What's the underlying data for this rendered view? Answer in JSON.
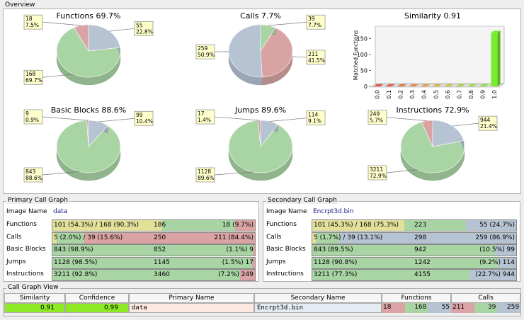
{
  "overview": {
    "title": "Overview"
  },
  "chart_data": [
    {
      "type": "pie",
      "title": "Functions 69.7%",
      "counts": [
        18,
        55,
        168
      ],
      "values": [
        7.5,
        22.8,
        69.7
      ],
      "value_labels": [
        "7.5%",
        "22.8%",
        "69.7%"
      ],
      "colors": [
        "#d9a3a3",
        "#b5c3d3",
        "#a9d4a4"
      ]
    },
    {
      "type": "pie",
      "title": "Calls 7.7%",
      "counts": [
        259,
        39,
        211
      ],
      "values": [
        50.9,
        7.7,
        41.5
      ],
      "value_labels": [
        "50.9%",
        "7.7%",
        "41.5%"
      ],
      "colors": [
        "#b5c3d3",
        "#a9d4a4",
        "#d9a3a3"
      ]
    },
    {
      "type": "bar",
      "title": "Similarity 0.91",
      "y_label": "Matched Functions",
      "categories": [
        "0.0",
        "0.1",
        "0.2",
        "0.3",
        "0.4",
        "0.5",
        "0.6",
        "0.7",
        "0.8",
        "0.9",
        "1.0"
      ],
      "values": [
        0,
        0,
        0,
        0,
        0,
        0,
        0,
        0,
        0,
        0,
        168
      ],
      "colors": [
        "#e0504a",
        "#e0604a",
        "#e07848",
        "#e08c48",
        "#e0a048",
        "#d8b448",
        "#c8c448",
        "#b4d048",
        "#a0dc48",
        "#8ce440",
        "#7aec30"
      ],
      "ylim": [
        0,
        180
      ],
      "yticks": [
        0,
        50,
        100,
        150
      ]
    },
    {
      "type": "pie",
      "title": "Basic Blocks 88.6%",
      "counts": [
        9,
        99,
        843
      ],
      "values": [
        0.9,
        10.4,
        88.6
      ],
      "value_labels": [
        "0.9%",
        "10.4%",
        "88.6%"
      ],
      "colors": [
        "#d9a3a3",
        "#b5c3d3",
        "#a9d4a4"
      ]
    },
    {
      "type": "pie",
      "title": "Jumps 89.6%",
      "counts": [
        17,
        114,
        1128
      ],
      "values": [
        1.4,
        9.1,
        89.6
      ],
      "value_labels": [
        "1.4%",
        "9.1%",
        "89.6%"
      ],
      "colors": [
        "#d9a3a3",
        "#b5c3d3",
        "#a9d4a4"
      ]
    },
    {
      "type": "pie",
      "title": "Instructions 72.9%",
      "counts": [
        249,
        944,
        3211
      ],
      "values": [
        5.7,
        21.4,
        72.9
      ],
      "value_labels": [
        "5.7%",
        "21.4%",
        "72.9%"
      ],
      "colors": [
        "#d9a3a3",
        "#b5c3d3",
        "#a9d4a4"
      ]
    }
  ],
  "primary": {
    "title": "Primary Call Graph",
    "image_label": "Image Name",
    "image_name": "data",
    "rows": [
      {
        "label": "Functions",
        "matched": "101 (54.3%) / 168 (90.3%)",
        "total": 186,
        "unmatched": "18 (9.7%)"
      },
      {
        "label": "Calls",
        "matched": "5 (2.0%) / 39 (15.6%)",
        "total": 250,
        "unmatched": "211 (84.4%)"
      },
      {
        "label": "Basic Blocks",
        "matched": "843 (98.9%)",
        "total": 852,
        "unmatched": "(1.1%) 9"
      },
      {
        "label": "Jumps",
        "matched": "1128 (98.5%)",
        "total": 1145,
        "unmatched": "(1.5%) 17"
      },
      {
        "label": "Instructions",
        "matched": "3211 (92.8%)",
        "total": 3460,
        "unmatched": "(7.2%) 249"
      }
    ]
  },
  "secondary": {
    "title": "Secondary Call Graph",
    "image_label": "Image Name",
    "image_name": "Encrpt3d.bin",
    "rows": [
      {
        "label": "Functions",
        "matched": "101 (45.3%) / 168 (75.3%)",
        "total": 223,
        "unmatched": "55 (24.7%)"
      },
      {
        "label": "Calls",
        "matched": "5 (1.7%) / 39 (13.1%)",
        "total": 298,
        "unmatched": "259 (86.9%)"
      },
      {
        "label": "Basic Blocks",
        "matched": "843 (89.5%)",
        "total": 942,
        "unmatched": "(10.5%) 99"
      },
      {
        "label": "Jumps",
        "matched": "1128 (90.8%)",
        "total": 1242,
        "unmatched": "(9.2%) 114"
      },
      {
        "label": "Instructions",
        "matched": "3211 (77.3%)",
        "total": 4155,
        "unmatched": "(22.7%) 944"
      }
    ]
  },
  "call_graph_view": {
    "title": "Call Graph View",
    "headers": [
      "Similarity",
      "Confidence",
      "Primary Name",
      "Secondary Name",
      "Functions",
      "Calls"
    ],
    "row": {
      "similarity": 0.91,
      "confidence": 0.99,
      "primary_name": "data",
      "secondary_name": "Encrpt3d.bin",
      "functions": [
        18,
        168,
        55
      ],
      "calls": [
        211,
        39,
        259
      ]
    }
  }
}
